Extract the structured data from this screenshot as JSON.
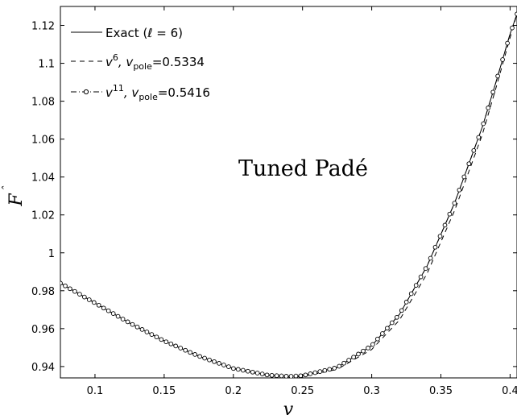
{
  "chart_data": {
    "type": "line",
    "xlabel": "v",
    "ylabel": "F",
    "ylabel_accent": "ˆ",
    "xlim": [
      0.075,
      0.405
    ],
    "ylim": [
      0.934,
      1.13
    ],
    "xticks": [
      0.1,
      0.15,
      0.2,
      0.25,
      0.3,
      0.35,
      0.4
    ],
    "xtick_labels": [
      "0.1",
      "0.15",
      "0.2",
      "0.25",
      "0.3",
      "0.35",
      "0.4"
    ],
    "yticks": [
      0.94,
      0.96,
      0.98,
      1.0,
      1.02,
      1.04,
      1.06,
      1.08,
      1.1,
      1.12
    ],
    "ytick_labels": [
      "0.94",
      "0.96",
      "0.98",
      "1",
      "1.02",
      "1.04",
      "1.06",
      "1.08",
      "1.1",
      "1.12"
    ],
    "annotation": "Tuned Padé",
    "legend_position": "top-left",
    "grid": false,
    "series": [
      {
        "key": "exact",
        "legend": {
          "main": "Exact (ℓ = 6)"
        },
        "style": "solid",
        "x": [
          0.075,
          0.1,
          0.125,
          0.15,
          0.175,
          0.2,
          0.225,
          0.24,
          0.25,
          0.275,
          0.3,
          0.32,
          0.34,
          0.36,
          0.38,
          0.39,
          0.4,
          0.405
        ],
        "y": [
          0.984,
          0.9735,
          0.963,
          0.9535,
          0.9455,
          0.939,
          0.9355,
          0.9348,
          0.9352,
          0.9395,
          0.951,
          0.9675,
          0.993,
          1.0265,
          1.0665,
          1.0905,
          1.1155,
          1.126
        ]
      },
      {
        "key": "v6",
        "legend": {
          "pre": "v",
          "sup": "6",
          "mid": ", v",
          "sub": "pole",
          "post": "=0.5334"
        },
        "style": "dashed",
        "x": [
          0.075,
          0.1,
          0.125,
          0.15,
          0.175,
          0.2,
          0.225,
          0.24,
          0.25,
          0.275,
          0.3,
          0.32,
          0.34,
          0.36,
          0.38,
          0.39,
          0.4,
          0.405
        ],
        "y": [
          0.984,
          0.9735,
          0.963,
          0.9535,
          0.9455,
          0.9388,
          0.9352,
          0.9345,
          0.9347,
          0.9385,
          0.949,
          0.9645,
          0.989,
          1.0225,
          1.0625,
          1.0875,
          1.1135,
          1.126
        ]
      },
      {
        "key": "v11",
        "legend": {
          "pre": "v",
          "sup": "11",
          "mid": ", v",
          "sub": "pole",
          "post": "=0.5416"
        },
        "style": "dash-dot-circle",
        "x": [
          0.075,
          0.1,
          0.125,
          0.15,
          0.175,
          0.2,
          0.225,
          0.24,
          0.25,
          0.275,
          0.3,
          0.32,
          0.34,
          0.36,
          0.38,
          0.39,
          0.4,
          0.405
        ],
        "y": [
          0.984,
          0.9735,
          0.963,
          0.9535,
          0.9455,
          0.939,
          0.9355,
          0.9348,
          0.9352,
          0.9395,
          0.951,
          0.9675,
          0.993,
          1.0265,
          1.0665,
          1.0905,
          1.1155,
          1.126
        ]
      }
    ]
  }
}
